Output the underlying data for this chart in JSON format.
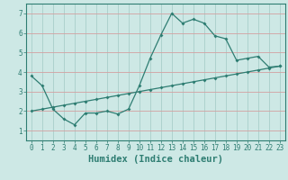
{
  "xlabel": "Humidex (Indice chaleur)",
  "background_color": "#cde8e5",
  "grid_color": "#a8ceca",
  "line_color": "#2e7d72",
  "x_min": -0.5,
  "x_max": 23.5,
  "y_min": 0.5,
  "y_max": 7.5,
  "yticks": [
    1,
    2,
    3,
    4,
    5,
    6,
    7
  ],
  "xticks": [
    0,
    1,
    2,
    3,
    4,
    5,
    6,
    7,
    8,
    9,
    10,
    11,
    12,
    13,
    14,
    15,
    16,
    17,
    18,
    19,
    20,
    21,
    22,
    23
  ],
  "line1_x": [
    0,
    1,
    2,
    3,
    4,
    5,
    6,
    7,
    8,
    9,
    10,
    11,
    12,
    13,
    14,
    15,
    16,
    17,
    18,
    19,
    20,
    21,
    22,
    23
  ],
  "line1_y": [
    3.8,
    3.3,
    2.1,
    1.6,
    1.3,
    1.9,
    1.9,
    2.0,
    1.85,
    2.1,
    3.3,
    4.7,
    5.9,
    7.0,
    6.5,
    6.7,
    6.5,
    5.85,
    5.7,
    4.6,
    4.7,
    4.8,
    4.25,
    4.3
  ],
  "line2_x": [
    0,
    1,
    2,
    3,
    4,
    5,
    6,
    7,
    8,
    9,
    10,
    11,
    12,
    13,
    14,
    15,
    16,
    17,
    18,
    19,
    20,
    21,
    22,
    23
  ],
  "line2_y": [
    2.0,
    2.1,
    2.2,
    2.3,
    2.4,
    2.5,
    2.6,
    2.7,
    2.8,
    2.9,
    3.0,
    3.1,
    3.2,
    3.3,
    3.4,
    3.5,
    3.6,
    3.7,
    3.8,
    3.9,
    4.0,
    4.1,
    4.2,
    4.3
  ],
  "tick_fontsize": 5.5,
  "label_fontsize": 7.5
}
